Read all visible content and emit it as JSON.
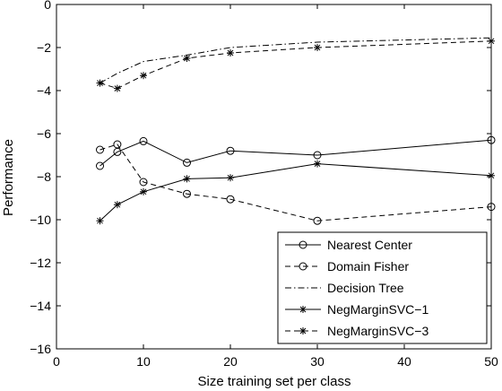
{
  "chart_data": {
    "type": "line",
    "title": "",
    "xlabel": "Size training set per class",
    "ylabel": "Performance",
    "xlim": [
      0,
      50
    ],
    "ylim": [
      -16,
      0
    ],
    "xticks": [
      0,
      10,
      20,
      30,
      40,
      50
    ],
    "yticks": [
      0,
      -2,
      -4,
      -6,
      -8,
      -10,
      -12,
      -14,
      -16
    ],
    "grid": false,
    "legend_position": "bottom-right",
    "series": [
      {
        "name": "Nearest Center",
        "line_style": "solid",
        "marker": "circle",
        "color": "#000000",
        "x": [
          5,
          7,
          10,
          15,
          20,
          30,
          50
        ],
        "y": [
          -7.5,
          -6.85,
          -6.35,
          -7.35,
          -6.8,
          -7.0,
          -6.3
        ]
      },
      {
        "name": "Domain Fisher",
        "line_style": "dashed",
        "marker": "circle",
        "color": "#000000",
        "x": [
          5,
          7,
          10,
          15,
          20,
          30,
          50
        ],
        "y": [
          -6.75,
          -6.5,
          -8.25,
          -8.8,
          -9.05,
          -10.05,
          -9.4
        ]
      },
      {
        "name": "Decision Tree",
        "line_style": "dashdot",
        "marker": "none",
        "color": "#000000",
        "x": [
          5,
          7,
          10,
          15,
          20,
          30,
          50
        ],
        "y": [
          -3.65,
          -3.2,
          -2.65,
          -2.35,
          -2.0,
          -1.75,
          -1.55
        ]
      },
      {
        "name": "NegMarginSVC−1",
        "line_style": "solid",
        "marker": "star",
        "color": "#000000",
        "x": [
          5,
          7,
          10,
          15,
          20,
          30,
          50
        ],
        "y": [
          -10.05,
          -9.3,
          -8.7,
          -8.1,
          -8.05,
          -7.4,
          -7.95
        ]
      },
      {
        "name": "NegMarginSVC−3",
        "line_style": "dashed",
        "marker": "star",
        "color": "#000000",
        "x": [
          5,
          7,
          10,
          15,
          20,
          30,
          50
        ],
        "y": [
          -3.65,
          -3.9,
          -3.3,
          -2.5,
          -2.25,
          -2.0,
          -1.7
        ]
      }
    ]
  }
}
